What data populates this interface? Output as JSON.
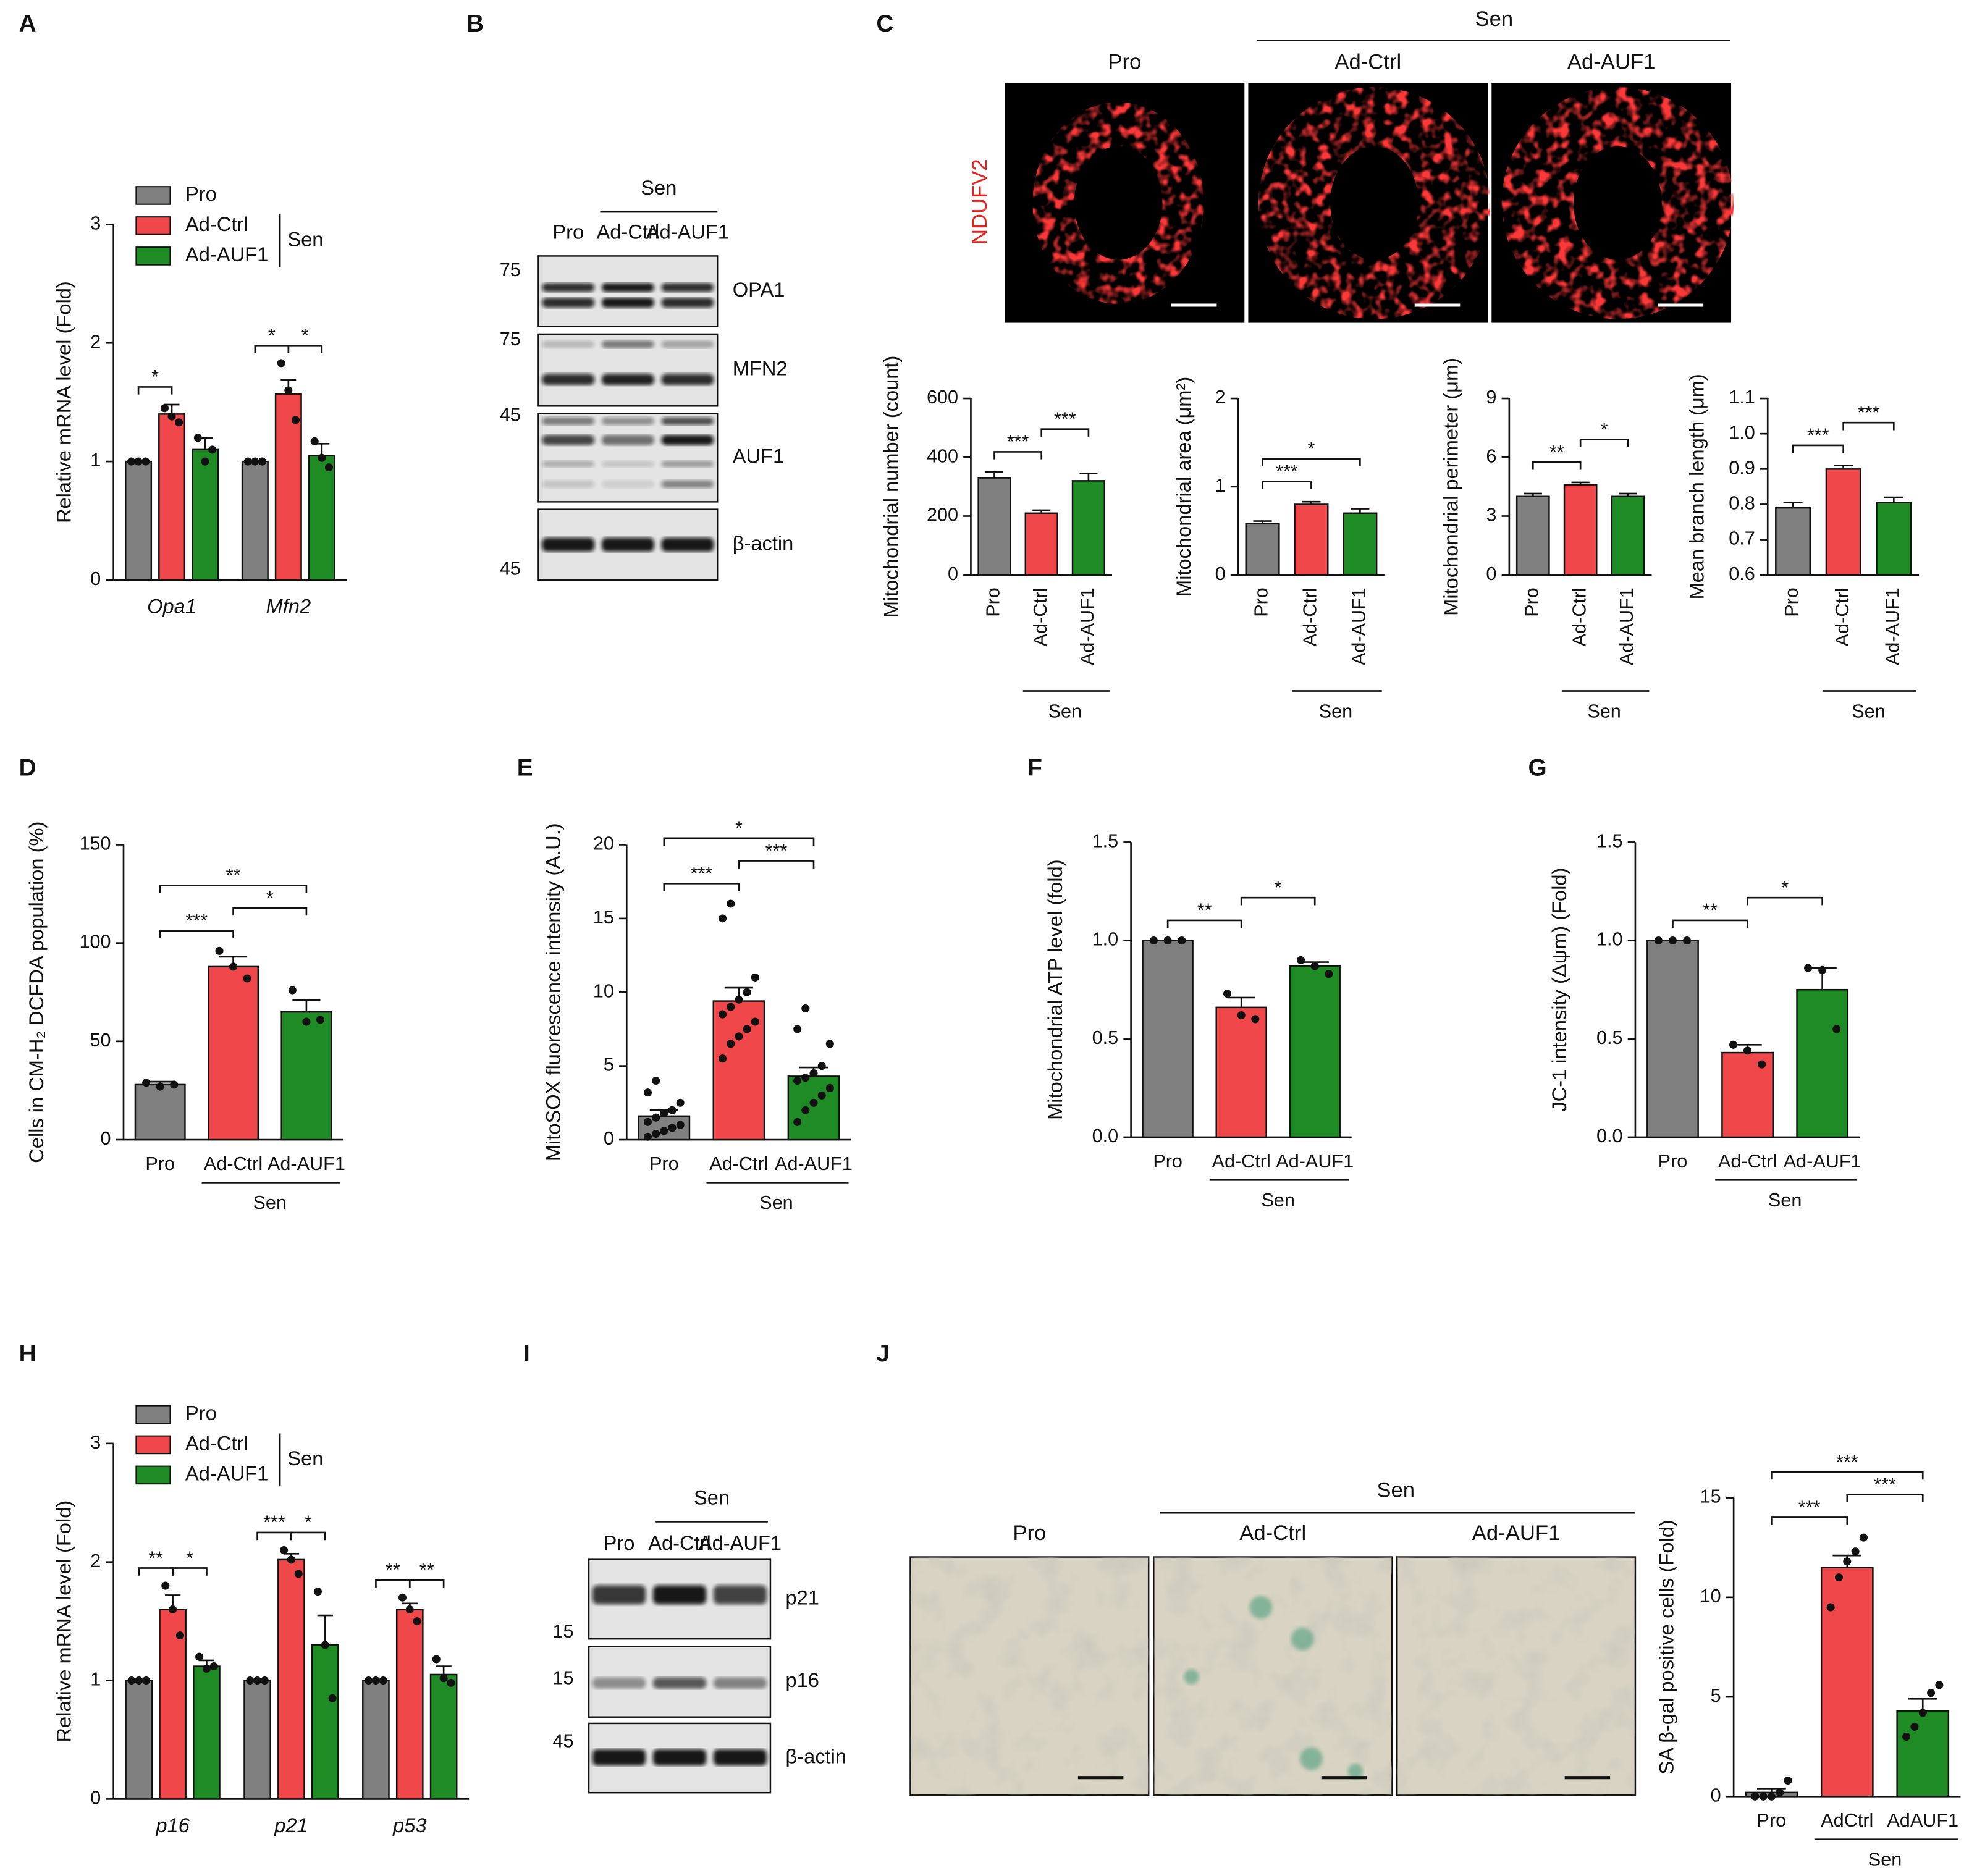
{
  "chart_data": [
    {
      "type": "grouped_bar",
      "y_label": "Relative mRNA level (Fold)",
      "categories": [
        "Opa1",
        "Mfn2"
      ],
      "ylim": [
        0,
        3
      ],
      "yticks": [
        0,
        1,
        2,
        3
      ],
      "legend_group": "Sen",
      "series": [
        {
          "name": "Pro",
          "color": "#808080",
          "values": [
            1,
            1
          ],
          "errors": [
            0,
            0
          ],
          "points": [
            [
              1,
              1,
              1
            ],
            [
              1,
              1,
              1
            ]
          ]
        },
        {
          "name": "Ad-Ctrl",
          "color": "#f0474a",
          "values": [
            1.4,
            1.57
          ],
          "errors": [
            0.08,
            0.12
          ],
          "points": [
            [
              1.45,
              1.38,
              1.33
            ],
            [
              1.83,
              1.6,
              1.35
            ]
          ]
        },
        {
          "name": "Ad-AUF1",
          "color": "#1e8b24",
          "values": [
            1.1,
            1.05
          ],
          "errors": [
            0.1,
            0.1
          ],
          "points": [
            [
              1.2,
              1.0,
              1.1
            ],
            [
              1.17,
              1.03,
              0.95
            ]
          ]
        }
      ],
      "significance": [
        {
          "category": 0,
          "between": [
            0,
            1
          ],
          "label": "*"
        },
        {
          "category": 1,
          "between": [
            0,
            1
          ],
          "label": "*"
        },
        {
          "category": 1,
          "between": [
            1,
            2
          ],
          "label": "*"
        }
      ]
    },
    {
      "type": "bar",
      "y_label": "Mitochondrial number (count)",
      "categories": [
        "Pro",
        "Ad-Ctrl",
        "Ad-AUF1"
      ],
      "group_label": "Sen",
      "colors": [
        "#808080",
        "#f0474a",
        "#1e8b24"
      ],
      "values": [
        330,
        210,
        320
      ],
      "errors": [
        20,
        10,
        25
      ],
      "ylim": [
        0,
        600
      ],
      "yticks": [
        0,
        200,
        400,
        600
      ],
      "significance": [
        {
          "between": [
            0,
            1
          ],
          "label": "***"
        },
        {
          "between": [
            1,
            2
          ],
          "label": "***"
        }
      ]
    },
    {
      "type": "bar",
      "y_label": "Mitochondrial area (μm²)",
      "categories": [
        "Pro",
        "Ad-Ctrl",
        "Ad-AUF1"
      ],
      "group_label": "Sen",
      "colors": [
        "#808080",
        "#f0474a",
        "#1e8b24"
      ],
      "values": [
        0.58,
        0.8,
        0.7
      ],
      "errors": [
        0.03,
        0.03,
        0.05
      ],
      "ylim": [
        0,
        2
      ],
      "yticks": [
        0,
        1,
        2
      ],
      "significance": [
        {
          "between": [
            0,
            1
          ],
          "label": "***"
        },
        {
          "between": [
            0,
            2
          ],
          "label": "*"
        }
      ]
    },
    {
      "type": "bar",
      "y_label": "Mitochondrial perimeter (μm)",
      "categories": [
        "Pro",
        "Ad-Ctrl",
        "Ad-AUF1"
      ],
      "group_label": "Sen",
      "colors": [
        "#808080",
        "#f0474a",
        "#1e8b24"
      ],
      "values": [
        4.0,
        4.6,
        4.0
      ],
      "errors": [
        0.15,
        0.12,
        0.15
      ],
      "ylim": [
        0,
        9
      ],
      "yticks": [
        0,
        3,
        6,
        9
      ],
      "significance": [
        {
          "between": [
            0,
            1
          ],
          "label": "**"
        },
        {
          "between": [
            1,
            2
          ],
          "label": "*"
        }
      ]
    },
    {
      "type": "bar",
      "y_label": "Mean branch length (μm)",
      "categories": [
        "Pro",
        "Ad-Ctrl",
        "Ad-AUF1"
      ],
      "group_label": "Sen",
      "colors": [
        "#808080",
        "#f0474a",
        "#1e8b24"
      ],
      "values": [
        0.79,
        0.9,
        0.805
      ],
      "errors": [
        0.015,
        0.01,
        0.015
      ],
      "ylim": [
        0.6,
        1.1
      ],
      "yticks": [
        0.6,
        0.7,
        0.8,
        0.9,
        {
          "value": 1,
          "label": "1.0"
        },
        1.1
      ],
      "significance": [
        {
          "between": [
            0,
            1
          ],
          "label": "***"
        },
        {
          "between": [
            1,
            2
          ],
          "label": "***"
        }
      ]
    },
    {
      "type": "bar",
      "y_label": "Cells in CM-H₂ DCFDA population (%)",
      "categories": [
        "Pro",
        "Ad-Ctrl",
        "Ad-AUF1"
      ],
      "group_label": "Sen",
      "colors": [
        "#808080",
        "#f0474a",
        "#1e8b24"
      ],
      "values": [
        28,
        88,
        65
      ],
      "errors": [
        1.5,
        5,
        6
      ],
      "points": [
        [
          29,
          27,
          28
        ],
        [
          96,
          88,
          82
        ],
        [
          76,
          60,
          61
        ]
      ],
      "ylim": [
        0,
        150
      ],
      "yticks": [
        0,
        50,
        100,
        150
      ],
      "significance": [
        {
          "between": [
            0,
            1
          ],
          "label": "***"
        },
        {
          "between": [
            1,
            2
          ],
          "label": "*"
        },
        {
          "between": [
            0,
            2
          ],
          "label": "**"
        }
      ]
    },
    {
      "type": "bar",
      "y_label": "MitoSOX fluorescence intensity (A.U.)",
      "categories": [
        "Pro",
        "Ad-Ctrl",
        "Ad-AUF1"
      ],
      "group_label": "Sen",
      "colors": [
        "#808080",
        "#f0474a",
        "#1e8b24"
      ],
      "values": [
        1.6,
        9.4,
        4.3
      ],
      "errors": [
        0.4,
        0.9,
        0.6
      ],
      "points": [
        [
          0.2,
          0.4,
          0.6,
          0.8,
          1.0,
          1.2,
          1.5,
          1.8,
          2.0,
          2.5,
          3.2,
          4.0
        ],
        [
          5.5,
          6.5,
          7,
          7.5,
          8,
          8.5,
          9,
          9.5,
          10,
          11,
          15,
          16
        ],
        [
          1.2,
          2,
          2.5,
          3,
          3.5,
          4,
          4.2,
          4.5,
          5,
          6.5,
          7.5,
          8.9
        ]
      ],
      "ylim": [
        0,
        20
      ],
      "yticks": [
        0,
        5,
        10,
        15,
        20
      ],
      "significance": [
        {
          "between": [
            0,
            1
          ],
          "label": "***"
        },
        {
          "between": [
            1,
            2
          ],
          "label": "***"
        },
        {
          "between": [
            0,
            2
          ],
          "label": "*"
        }
      ]
    },
    {
      "type": "bar",
      "y_label": "Mitochondrial ATP level (fold)",
      "categories": [
        "Pro",
        "Ad-Ctrl",
        "Ad-AUF1"
      ],
      "group_label": "Sen",
      "colors": [
        "#808080",
        "#f0474a",
        "#1e8b24"
      ],
      "values": [
        1.0,
        0.66,
        0.87
      ],
      "errors": [
        0,
        0.05,
        0.02
      ],
      "points": [
        [
          1,
          1,
          1
        ],
        [
          0.73,
          0.62,
          0.6
        ],
        [
          0.9,
          0.87,
          0.83
        ]
      ],
      "ylim": [
        0,
        1.5
      ],
      "yticks": [
        {
          "value": 0,
          "label": "0.0"
        },
        0.5,
        {
          "value": 1,
          "label": "1.0"
        },
        1.5
      ],
      "significance": [
        {
          "between": [
            0,
            1
          ],
          "label": "**"
        },
        {
          "between": [
            1,
            2
          ],
          "label": "*"
        }
      ]
    },
    {
      "type": "bar",
      "y_label": "JC-1 intensity (Δψm) (Fold)",
      "categories": [
        "Pro",
        "Ad-Ctrl",
        "Ad-AUF1"
      ],
      "group_label": "Sen",
      "colors": [
        "#808080",
        "#f0474a",
        "#1e8b24"
      ],
      "values": [
        1.0,
        0.43,
        0.75
      ],
      "errors": [
        0,
        0.04,
        0.11
      ],
      "points": [
        [
          1,
          1,
          1
        ],
        [
          0.47,
          0.44,
          0.37
        ],
        [
          0.86,
          0.85,
          0.55
        ]
      ],
      "ylim": [
        0,
        1.5
      ],
      "yticks": [
        {
          "value": 0,
          "label": "0.0"
        },
        0.5,
        {
          "value": 1,
          "label": "1.0"
        },
        1.5
      ],
      "significance": [
        {
          "between": [
            0,
            1
          ],
          "label": "**"
        },
        {
          "between": [
            1,
            2
          ],
          "label": "*"
        }
      ]
    },
    {
      "type": "grouped_bar",
      "y_label": "Relative mRNA level (Fold)",
      "categories": [
        "p16",
        "p21",
        "p53"
      ],
      "ylim": [
        0,
        3
      ],
      "yticks": [
        0,
        1,
        2,
        3
      ],
      "legend_group": "Sen",
      "series": [
        {
          "name": "Pro",
          "color": "#808080",
          "values": [
            1,
            1,
            1
          ],
          "errors": [
            0,
            0,
            0
          ],
          "points": [
            [
              1,
              1,
              1
            ],
            [
              1,
              1,
              1
            ],
            [
              1,
              1,
              1
            ]
          ]
        },
        {
          "name": "Ad-Ctrl",
          "color": "#f0474a",
          "values": [
            1.6,
            2.02,
            1.6
          ],
          "errors": [
            0.12,
            0.05,
            0.05
          ],
          "points": [
            [
              1.8,
              1.6,
              1.38
            ],
            [
              2.1,
              2.02,
              1.9
            ],
            [
              1.7,
              1.6,
              1.5
            ]
          ]
        },
        {
          "name": "Ad-AUF1",
          "color": "#1e8b24",
          "values": [
            1.12,
            1.3,
            1.05
          ],
          "errors": [
            0.05,
            0.25,
            0.07
          ],
          "points": [
            [
              1.2,
              1.1,
              1.12
            ],
            [
              1.75,
              1.3,
              0.85
            ],
            [
              1.18,
              1.02,
              0.98
            ]
          ]
        }
      ],
      "significance": [
        {
          "category": 0,
          "between": [
            0,
            1
          ],
          "label": "**"
        },
        {
          "category": 0,
          "between": [
            1,
            2
          ],
          "label": "*"
        },
        {
          "category": 1,
          "between": [
            0,
            1
          ],
          "label": "***"
        },
        {
          "category": 1,
          "between": [
            1,
            2
          ],
          "label": "*"
        },
        {
          "category": 2,
          "between": [
            0,
            1
          ],
          "label": "**"
        },
        {
          "category": 2,
          "between": [
            1,
            2
          ],
          "label": "**"
        }
      ]
    },
    {
      "type": "bar",
      "y_label": "SA β-gal positive cells (Fold)",
      "categories": [
        "Pro",
        "AdCtrl",
        "AdAUF1"
      ],
      "group_label": "Sen",
      "colors": [
        "#808080",
        "#f0474a",
        "#1e8b24"
      ],
      "values": [
        0.2,
        11.5,
        4.3
      ],
      "errors": [
        0.2,
        0.6,
        0.6
      ],
      "points": [
        [
          0,
          0,
          0,
          0.2,
          0.8
        ],
        [
          9.5,
          11,
          11.8,
          12.3,
          13
        ],
        [
          3,
          3.5,
          4.2,
          5.2,
          5.6
        ]
      ],
      "ylim": [
        0,
        15
      ],
      "yticks": [
        0,
        5,
        10,
        15
      ],
      "significance": [
        {
          "between": [
            0,
            1
          ],
          "label": "***"
        },
        {
          "between": [
            1,
            2
          ],
          "label": "***"
        },
        {
          "between": [
            0,
            2
          ],
          "label": "***"
        }
      ]
    }
  ],
  "figure": {
    "panel_letters": [
      "A",
      "B",
      "C",
      "D",
      "E",
      "F",
      "G",
      "H",
      "I",
      "J"
    ],
    "blot_b": {
      "group": "Sen",
      "lanes": [
        "Pro",
        "Ad-Ctrl",
        "Ad-AUF1"
      ],
      "markers": [
        75,
        75,
        45,
        45
      ],
      "proteins": [
        "OPA1",
        "MFN2",
        "AUF1",
        "β-actin"
      ]
    },
    "images_c": {
      "group": "Sen",
      "labels": [
        "Pro",
        "Ad-Ctrl",
        "Ad-AUF1"
      ],
      "stain": "NDUFV2"
    },
    "blot_i": {
      "group": "Sen",
      "lanes": [
        "Pro",
        "Ad-Ctrl",
        "Ad-AUF1"
      ],
      "markers": [
        15,
        15,
        45
      ],
      "proteins": [
        "p21",
        "p16",
        "β-actin"
      ]
    },
    "images_j": {
      "group": "Sen",
      "labels": [
        "Pro",
        "Ad-Ctrl",
        "Ad-AUF1"
      ]
    }
  }
}
